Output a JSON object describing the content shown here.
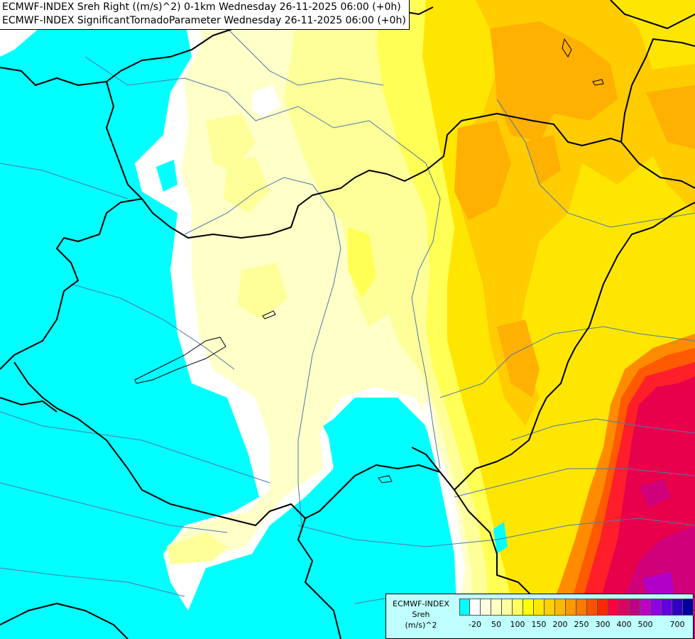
{
  "title_lines": [
    "ECMWF-INDEX Sreh Right ((m/s)^2) 0-1km Wednesday 26-11-2025 06:00 (+0h)",
    "ECMWF-INDEX SignificantTornadoParameter Wednesday 26-11-2025 06:00 (+0h)"
  ],
  "legend": {
    "model": "ECMWF-INDEX",
    "parameter": "Sreh",
    "unit": "(m/s)^2",
    "colors": [
      "#00ffff",
      "#ffffff",
      "#ffffe0",
      "#ffffc0",
      "#ffffa0",
      "#ffff60",
      "#ffff00",
      "#ffe800",
      "#ffd000",
      "#ffb800",
      "#ff9800",
      "#ff7800",
      "#ff5000",
      "#ff2800",
      "#ff0040",
      "#e00060",
      "#c00080",
      "#c000c0",
      "#9000e0",
      "#6000e0",
      "#3000c0",
      "#0000a0"
    ],
    "tick_labels": [
      "-20",
      "50",
      "100",
      "150",
      "200",
      "250",
      "300",
      "400",
      "500",
      "700"
    ]
  },
  "map_colors": {
    "cyan": "#00ffff",
    "white": "#ffffff",
    "pale": "#ffffc8",
    "light_yellow": "#ffff9a",
    "yellow": "#ffff55",
    "gold": "#ffe600",
    "orange_yellow": "#ffcc00",
    "orange": "#ffb000",
    "dark_orange": "#ff8c00",
    "red_orange": "#ff5a00",
    "red": "#ff1e2a",
    "crimson": "#e8004a",
    "magenta": "#d0007a",
    "purple": "#b000c8",
    "border": "#000000",
    "river": "#4a7aa8"
  }
}
